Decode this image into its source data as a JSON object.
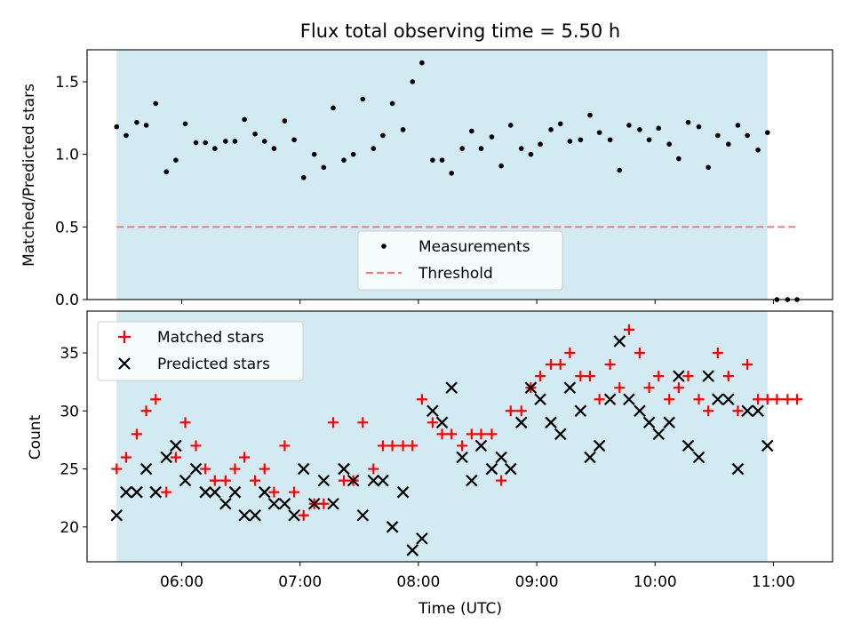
{
  "figure": {
    "title": "Flux total observing time = 5.50 h"
  },
  "chart_data": [
    {
      "type": "scatter",
      "panel": "top",
      "ylabel": "Matched/Predicted stars",
      "ylim": [
        0.0,
        1.72
      ],
      "xlim": [
        5.2,
        11.5
      ],
      "yticks": [
        0.0,
        0.5,
        1.0,
        1.5
      ],
      "ytick_labels": [
        "0.0",
        "0.5",
        "1.0",
        "1.5"
      ],
      "grid": false,
      "legend": "bottom-center",
      "observing_window": [
        5.45,
        10.95
      ],
      "series": [
        {
          "name": "Measurements",
          "color": "#000000",
          "points": [
            [
              5.45,
              1.19
            ],
            [
              5.53,
              1.13
            ],
            [
              5.62,
              1.22
            ],
            [
              5.7,
              1.2
            ],
            [
              5.78,
              1.35
            ],
            [
              5.87,
              0.88
            ],
            [
              5.95,
              0.96
            ],
            [
              6.03,
              1.21
            ],
            [
              6.12,
              1.08
            ],
            [
              6.2,
              1.08
            ],
            [
              6.28,
              1.04
            ],
            [
              6.37,
              1.09
            ],
            [
              6.45,
              1.09
            ],
            [
              6.53,
              1.24
            ],
            [
              6.62,
              1.14
            ],
            [
              6.7,
              1.09
            ],
            [
              6.78,
              1.04
            ],
            [
              6.87,
              1.23
            ],
            [
              6.95,
              1.1
            ],
            [
              7.03,
              0.84
            ],
            [
              7.12,
              1.0
            ],
            [
              7.2,
              0.91
            ],
            [
              7.28,
              1.32
            ],
            [
              7.37,
              0.96
            ],
            [
              7.45,
              1.0
            ],
            [
              7.53,
              1.38
            ],
            [
              7.62,
              1.04
            ],
            [
              7.7,
              1.13
            ],
            [
              7.78,
              1.35
            ],
            [
              7.87,
              1.17
            ],
            [
              7.95,
              1.5
            ],
            [
              8.03,
              1.63
            ],
            [
              8.12,
              0.96
            ],
            [
              8.2,
              0.96
            ],
            [
              8.28,
              0.87
            ],
            [
              8.37,
              1.04
            ],
            [
              8.45,
              1.16
            ],
            [
              8.53,
              1.04
            ],
            [
              8.62,
              1.12
            ],
            [
              8.7,
              0.92
            ],
            [
              8.78,
              1.2
            ],
            [
              8.87,
              1.04
            ],
            [
              8.95,
              1.0
            ],
            [
              9.03,
              1.07
            ],
            [
              9.12,
              1.17
            ],
            [
              9.2,
              1.21
            ],
            [
              9.28,
              1.09
            ],
            [
              9.37,
              1.1
            ],
            [
              9.45,
              1.27
            ],
            [
              9.53,
              1.15
            ],
            [
              9.62,
              1.1
            ],
            [
              9.7,
              0.89
            ],
            [
              9.78,
              1.2
            ],
            [
              9.87,
              1.17
            ],
            [
              9.95,
              1.1
            ],
            [
              10.03,
              1.18
            ],
            [
              10.12,
              1.07
            ],
            [
              10.2,
              0.97
            ],
            [
              10.28,
              1.22
            ],
            [
              10.37,
              1.19
            ],
            [
              10.45,
              0.91
            ],
            [
              10.53,
              1.13
            ],
            [
              10.62,
              1.07
            ],
            [
              10.7,
              1.2
            ],
            [
              10.78,
              1.13
            ],
            [
              10.87,
              1.03
            ],
            [
              10.95,
              1.15
            ],
            [
              11.03,
              0.0
            ],
            [
              11.12,
              0.0
            ],
            [
              11.2,
              0.0
            ]
          ]
        },
        {
          "name": "Threshold",
          "color": "#f08080",
          "style": "dashed",
          "points": [
            [
              5.45,
              0.5
            ],
            [
              11.2,
              0.5
            ]
          ]
        }
      ]
    },
    {
      "type": "scatter",
      "panel": "bottom",
      "xlabel": "Time (UTC)",
      "ylabel": "Count",
      "ylim": [
        17,
        38.6
      ],
      "xlim": [
        5.2,
        11.5
      ],
      "xticks": [
        6,
        7,
        8,
        9,
        10,
        11
      ],
      "xtick_labels": [
        "06:00",
        "07:00",
        "08:00",
        "09:00",
        "10:00",
        "11:00"
      ],
      "yticks": [
        20,
        25,
        30,
        35
      ],
      "ytick_labels": [
        "20",
        "25",
        "30",
        "35"
      ],
      "grid": false,
      "legend": "top-left",
      "observing_window": [
        5.45,
        10.95
      ],
      "series": [
        {
          "name": "Matched stars",
          "color": "#ff0000",
          "marker": "plus",
          "points": [
            [
              5.45,
              25
            ],
            [
              5.53,
              26
            ],
            [
              5.62,
              28
            ],
            [
              5.7,
              30
            ],
            [
              5.78,
              31
            ],
            [
              5.87,
              23
            ],
            [
              5.95,
              26
            ],
            [
              6.03,
              29
            ],
            [
              6.12,
              27
            ],
            [
              6.2,
              25
            ],
            [
              6.28,
              24
            ],
            [
              6.37,
              24
            ],
            [
              6.45,
              25
            ],
            [
              6.53,
              26
            ],
            [
              6.62,
              24
            ],
            [
              6.7,
              25
            ],
            [
              6.78,
              23
            ],
            [
              6.87,
              27
            ],
            [
              6.95,
              23
            ],
            [
              7.03,
              21
            ],
            [
              7.12,
              22
            ],
            [
              7.2,
              22
            ],
            [
              7.28,
              29
            ],
            [
              7.37,
              24
            ],
            [
              7.45,
              24
            ],
            [
              7.53,
              29
            ],
            [
              7.62,
              25
            ],
            [
              7.7,
              27
            ],
            [
              7.78,
              27
            ],
            [
              7.87,
              27
            ],
            [
              7.95,
              27
            ],
            [
              8.03,
              31
            ],
            [
              8.12,
              29
            ],
            [
              8.2,
              28
            ],
            [
              8.28,
              28
            ],
            [
              8.37,
              27
            ],
            [
              8.45,
              28
            ],
            [
              8.53,
              28
            ],
            [
              8.62,
              28
            ],
            [
              8.7,
              24
            ],
            [
              8.78,
              30
            ],
            [
              8.87,
              30
            ],
            [
              8.95,
              32
            ],
            [
              9.03,
              33
            ],
            [
              9.12,
              34
            ],
            [
              9.2,
              34
            ],
            [
              9.28,
              35
            ],
            [
              9.37,
              33
            ],
            [
              9.45,
              33
            ],
            [
              9.53,
              31
            ],
            [
              9.62,
              34
            ],
            [
              9.7,
              32
            ],
            [
              9.78,
              37
            ],
            [
              9.87,
              35
            ],
            [
              9.95,
              32
            ],
            [
              10.03,
              33
            ],
            [
              10.12,
              31
            ],
            [
              10.2,
              32
            ],
            [
              10.28,
              33
            ],
            [
              10.37,
              31
            ],
            [
              10.45,
              30
            ],
            [
              10.53,
              35
            ],
            [
              10.62,
              33
            ],
            [
              10.7,
              30
            ],
            [
              10.78,
              34
            ],
            [
              10.87,
              31
            ],
            [
              10.95,
              31
            ],
            [
              11.03,
              31
            ],
            [
              11.12,
              31
            ],
            [
              11.2,
              31
            ]
          ]
        },
        {
          "name": "Predicted stars",
          "color": "#000000",
          "marker": "x",
          "points": [
            [
              5.45,
              21
            ],
            [
              5.53,
              23
            ],
            [
              5.62,
              23
            ],
            [
              5.7,
              25
            ],
            [
              5.78,
              23
            ],
            [
              5.87,
              26
            ],
            [
              5.95,
              27
            ],
            [
              6.03,
              24
            ],
            [
              6.12,
              25
            ],
            [
              6.2,
              23
            ],
            [
              6.28,
              23
            ],
            [
              6.37,
              22
            ],
            [
              6.45,
              23
            ],
            [
              6.53,
              21
            ],
            [
              6.62,
              21
            ],
            [
              6.7,
              23
            ],
            [
              6.78,
              22
            ],
            [
              6.87,
              22
            ],
            [
              6.95,
              21
            ],
            [
              7.03,
              25
            ],
            [
              7.12,
              22
            ],
            [
              7.2,
              24
            ],
            [
              7.28,
              22
            ],
            [
              7.37,
              25
            ],
            [
              7.45,
              24
            ],
            [
              7.53,
              21
            ],
            [
              7.62,
              24
            ],
            [
              7.7,
              24
            ],
            [
              7.78,
              20
            ],
            [
              7.87,
              23
            ],
            [
              7.95,
              18
            ],
            [
              8.03,
              19
            ],
            [
              8.12,
              30
            ],
            [
              8.2,
              29
            ],
            [
              8.28,
              32
            ],
            [
              8.37,
              26
            ],
            [
              8.45,
              24
            ],
            [
              8.53,
              27
            ],
            [
              8.62,
              25
            ],
            [
              8.7,
              26
            ],
            [
              8.78,
              25
            ],
            [
              8.87,
              29
            ],
            [
              8.95,
              32
            ],
            [
              9.03,
              31
            ],
            [
              9.12,
              29
            ],
            [
              9.2,
              28
            ],
            [
              9.28,
              32
            ],
            [
              9.37,
              30
            ],
            [
              9.45,
              26
            ],
            [
              9.53,
              27
            ],
            [
              9.62,
              31
            ],
            [
              9.7,
              36
            ],
            [
              9.78,
              31
            ],
            [
              9.87,
              30
            ],
            [
              9.95,
              29
            ],
            [
              10.03,
              28
            ],
            [
              10.12,
              29
            ],
            [
              10.2,
              33
            ],
            [
              10.28,
              27
            ],
            [
              10.37,
              26
            ],
            [
              10.45,
              33
            ],
            [
              10.53,
              31
            ],
            [
              10.62,
              31
            ],
            [
              10.7,
              25
            ],
            [
              10.78,
              30
            ],
            [
              10.87,
              30
            ],
            [
              10.95,
              27
            ]
          ]
        }
      ]
    }
  ]
}
